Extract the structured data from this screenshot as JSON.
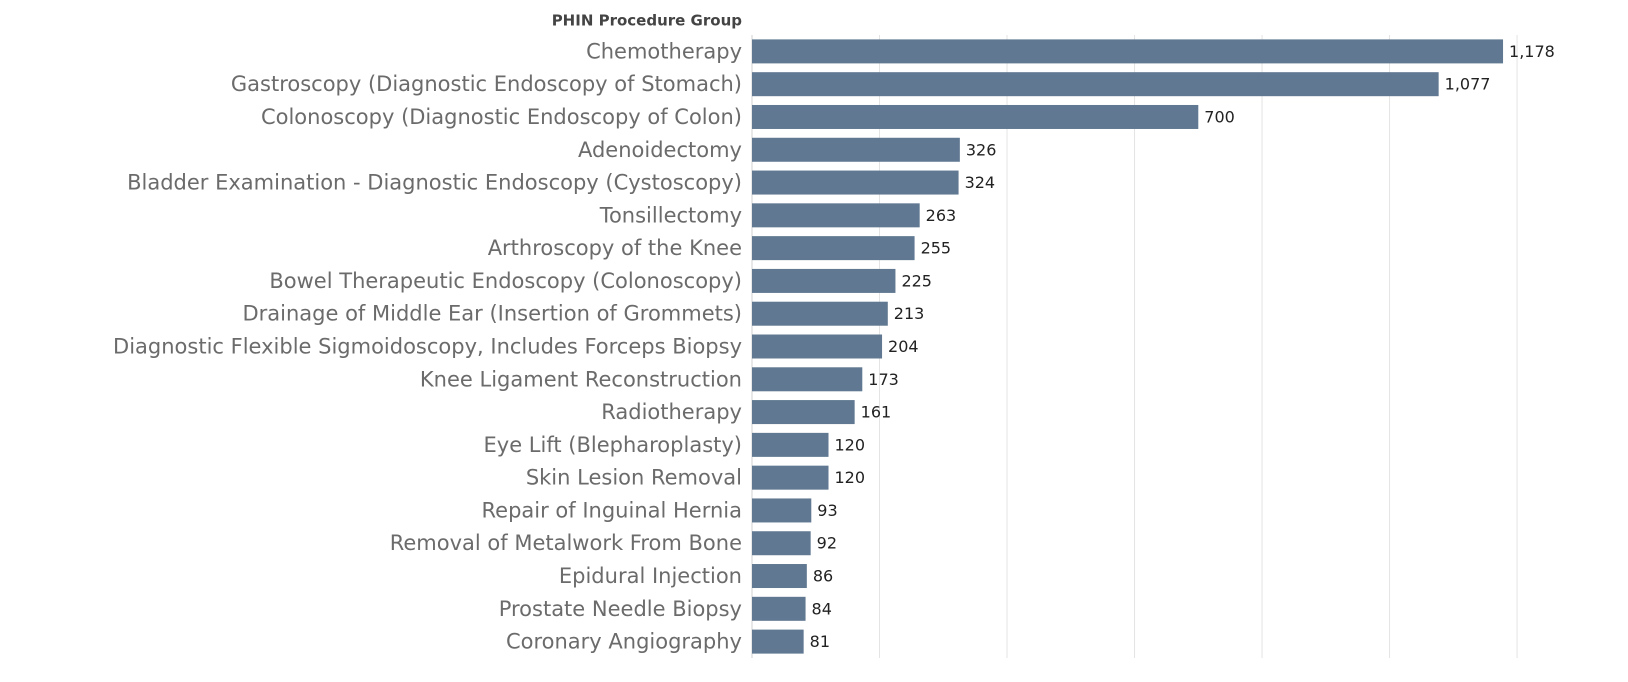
{
  "chart_data": {
    "type": "barh",
    "axis_title": "PHIN Procedure Group",
    "categories": [
      "Chemotherapy",
      "Gastroscopy (Diagnostic Endoscopy of Stomach)",
      "Colonoscopy (Diagnostic Endoscopy of Colon)",
      "Adenoidectomy",
      "Bladder Examination - Diagnostic Endoscopy (Cystoscopy)",
      "Tonsillectomy",
      "Arthroscopy of the Knee",
      "Bowel Therapeutic Endoscopy (Colonoscopy)",
      "Drainage of Middle Ear (Insertion of Grommets)",
      "Diagnostic Flexible Sigmoidoscopy, Includes Forceps Biopsy",
      "Knee Ligament Reconstruction",
      "Radiotherapy",
      "Eye Lift (Blepharoplasty)",
      "Skin Lesion Removal",
      "Repair of Inguinal Hernia",
      "Removal of Metalwork From Bone",
      "Epidural Injection",
      "Prostate Needle Biopsy",
      "Coronary Angiography"
    ],
    "values": [
      1178,
      1077,
      700,
      326,
      324,
      263,
      255,
      225,
      213,
      204,
      173,
      161,
      120,
      120,
      93,
      92,
      86,
      84,
      81
    ],
    "value_labels": [
      "1,178",
      "1,077",
      "700",
      "326",
      "324",
      "263",
      "255",
      "225",
      "213",
      "204",
      "173",
      "161",
      "120",
      "120",
      "93",
      "92",
      "86",
      "84",
      "81"
    ],
    "color": "#607891",
    "xlim": [
      0,
      1374
    ],
    "xticks": [
      0,
      200,
      400,
      600,
      800,
      1000,
      1200
    ],
    "grid": true
  }
}
